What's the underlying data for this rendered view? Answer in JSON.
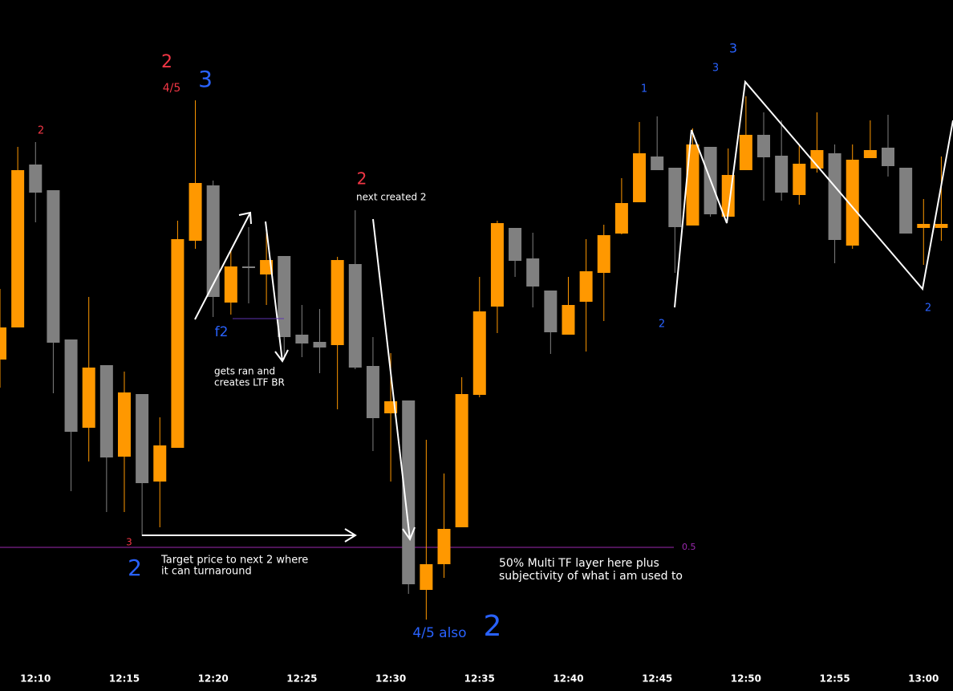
{
  "chart_data": {
    "type": "candlestick",
    "categories": [
      null,
      null,
      "12:10",
      null,
      null,
      null,
      null,
      "12:15",
      null,
      null,
      null,
      null,
      "12:20",
      null,
      null,
      null,
      null,
      "12:25",
      null,
      null,
      null,
      null,
      "12:30",
      null,
      null,
      null,
      null,
      "12:35",
      null,
      null,
      null,
      null,
      "12:40",
      null,
      null,
      null,
      null,
      "12:45",
      null,
      null,
      null,
      null,
      "12:50",
      null,
      null,
      null,
      null,
      "12:55",
      null,
      null,
      null,
      null,
      "13:00",
      null
    ],
    "open": [
      377,
      417,
      620,
      588,
      402,
      292,
      370,
      256,
      334,
      225,
      267,
      525,
      594,
      448,
      493,
      483,
      506,
      408,
      399,
      395,
      496,
      369,
      310,
      326,
      90,
      122,
      168,
      333,
      443,
      541,
      503,
      463,
      408,
      449,
      485,
      534,
      573,
      630,
      616,
      544,
      642,
      555,
      613,
      657,
      631,
      582,
      615,
      634,
      519,
      628,
      641,
      616,
      541,
      541
    ],
    "high": [
      465,
      642,
      648,
      588,
      402,
      455,
      370,
      362,
      334,
      305,
      550,
      700,
      600,
      515,
      542,
      535,
      506,
      445,
      440,
      505,
      563,
      405,
      385,
      326,
      277,
      235,
      355,
      480,
      550,
      541,
      535,
      463,
      480,
      527,
      545,
      603,
      673,
      680,
      616,
      665,
      642,
      640,
      705,
      685,
      675,
      645,
      685,
      645,
      645,
      675,
      682,
      616,
      577,
      630
    ],
    "low": [
      342,
      417,
      548,
      335,
      213,
      250,
      187,
      187,
      157,
      168,
      267,
      515,
      430,
      433,
      447,
      445,
      377,
      380,
      360,
      315,
      365,
      263,
      225,
      85,
      53,
      105,
      168,
      330,
      410,
      480,
      442,
      384,
      408,
      387,
      425,
      533,
      573,
      613,
      485,
      544,
      555,
      555,
      613,
      575,
      575,
      570,
      610,
      497,
      515,
      628,
      605,
      534,
      495,
      525
    ],
    "close": [
      417,
      613,
      585,
      398,
      287,
      367,
      255,
      336,
      223,
      270,
      527,
      597,
      455,
      493,
      491,
      501,
      405,
      397,
      392,
      501,
      367,
      304,
      325,
      97,
      122,
      166,
      334,
      437,
      547,
      500,
      468,
      411,
      445,
      487,
      532,
      572,
      634,
      613,
      542,
      645,
      558,
      607,
      657,
      629,
      585,
      621,
      638,
      526,
      626,
      638,
      618,
      534,
      546,
      546
    ],
    "up_color": "#ff9800",
    "down_color": "#808080",
    "ylim": [
      0,
      825
    ],
    "levels": [
      {
        "value": 143,
        "label": "0.5",
        "color": "#9c27b0"
      }
    ],
    "annotations": [
      {
        "text": "2",
        "color": "#f23645"
      },
      {
        "text": "4/5",
        "color": "#f23645"
      },
      {
        "text": "3",
        "color": "#2962ff"
      },
      {
        "text": "2",
        "color": "#f23645"
      },
      {
        "text": "2",
        "color": "#f23645"
      },
      {
        "text": "next created 2",
        "color": "#ffffff"
      },
      {
        "text": "f2",
        "color": "#2962ff"
      },
      {
        "text": "gets ran and",
        "color": "#ffffff"
      },
      {
        "text": "creates LTF BR",
        "color": "#ffffff"
      },
      {
        "text": "3",
        "color": "#f23645"
      },
      {
        "text": "2",
        "color": "#2962ff"
      },
      {
        "text": "Target price to next 2 where",
        "color": "#ffffff"
      },
      {
        "text": "it can turnaround",
        "color": "#ffffff"
      },
      {
        "text": "50% Multi TF layer here plus",
        "color": "#ffffff"
      },
      {
        "text": "subjectivity of what i am used to",
        "color": "#ffffff"
      },
      {
        "text": "4/5 also",
        "color": "#2962ff"
      },
      {
        "text": "2",
        "color": "#2962ff"
      },
      {
        "text": "1",
        "color": "#2962ff"
      },
      {
        "text": "3",
        "color": "#2962ff"
      },
      {
        "text": "3",
        "color": "#2962ff"
      },
      {
        "text": "2",
        "color": "#2962ff"
      },
      {
        "text": "2",
        "color": "#2962ff"
      }
    ]
  }
}
